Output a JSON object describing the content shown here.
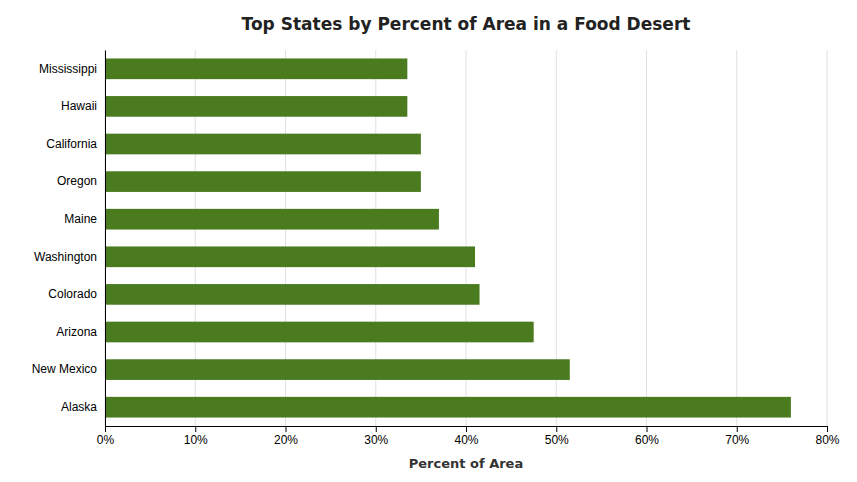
{
  "chart_data": {
    "type": "bar",
    "orientation": "horizontal",
    "title": "Top States by Percent of Area in a Food Desert",
    "xlabel": "Percent of Area",
    "categories": [
      "Alaska",
      "New Mexico",
      "Arizona",
      "Colorado",
      "Washington",
      "Maine",
      "Oregon",
      "California",
      "Hawaii",
      "Mississippi"
    ],
    "values": [
      76.0,
      51.5,
      47.5,
      41.5,
      41.0,
      37.0,
      35.0,
      35.0,
      33.5,
      33.5
    ],
    "color": "#4a7c1f",
    "xlim": [
      0,
      80
    ],
    "xticks": [
      {
        "value": 0,
        "label": "0%"
      },
      {
        "value": 10,
        "label": "10%"
      },
      {
        "value": 20,
        "label": "20%"
      },
      {
        "value": 30,
        "label": "30%"
      },
      {
        "value": 40,
        "label": "40%"
      },
      {
        "value": 50,
        "label": "50%"
      },
      {
        "value": 60,
        "label": "60%"
      },
      {
        "value": 70,
        "label": "70%"
      },
      {
        "value": 80,
        "label": "80%"
      }
    ],
    "grid": true
  }
}
